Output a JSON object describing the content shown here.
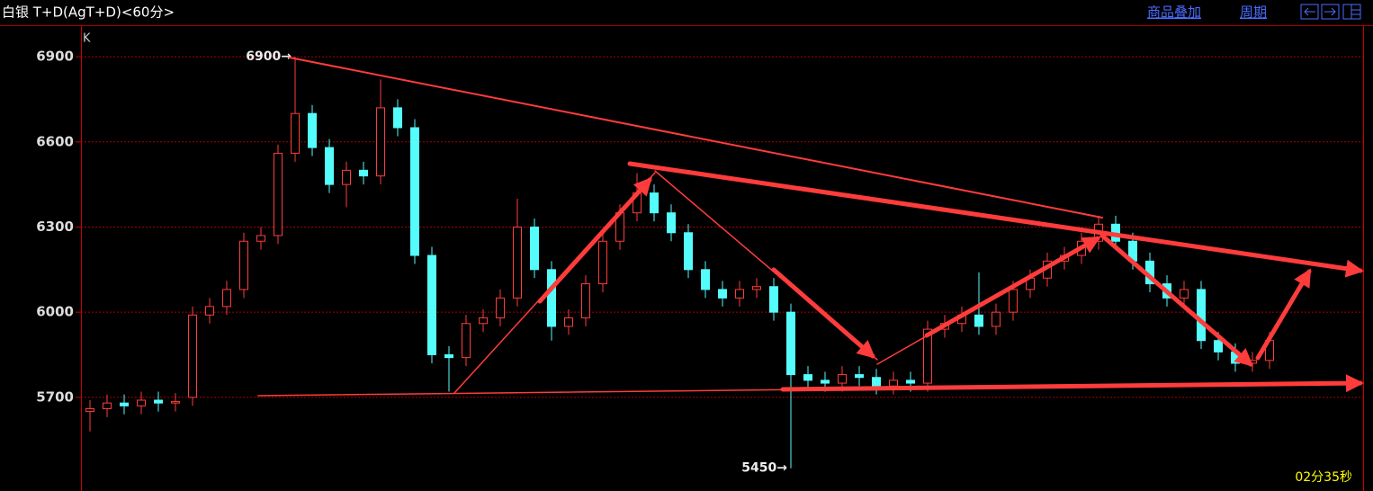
{
  "header": {
    "title": "白银 T+D(AgT+D)<60分>",
    "links": [
      "商品叠加",
      "周期"
    ]
  },
  "chart_data": {
    "type": "candlestick",
    "label": "K",
    "open": [
      5650,
      5660,
      5680,
      5670,
      5690,
      5680,
      5700,
      5990,
      6020,
      6080,
      6250,
      6270,
      6560,
      6700,
      6580,
      6450,
      6500,
      6480,
      6720,
      6650,
      6200,
      5850,
      5840,
      5960,
      5980,
      6050,
      6300,
      6150,
      5950,
      5980,
      6100,
      6250,
      6350,
      6420,
      6350,
      6280,
      6150,
      6080,
      6050,
      6080,
      6090,
      6000,
      5780,
      5760,
      5750,
      5780,
      5770,
      5740,
      5760,
      5750,
      5940,
      5960,
      5990,
      5950,
      6000,
      6080,
      6120,
      6180,
      6200,
      6250,
      6310,
      6250,
      6180,
      6100,
      6050,
      6080,
      5900,
      5860,
      5820,
      5830
    ],
    "high": [
      5690,
      5710,
      5710,
      5720,
      5720,
      5715,
      6020,
      6050,
      6110,
      6280,
      6300,
      6590,
      6900,
      6730,
      6610,
      6530,
      6530,
      6820,
      6750,
      6680,
      6230,
      5880,
      5990,
      6010,
      6080,
      6400,
      6330,
      6180,
      6010,
      6130,
      6280,
      6380,
      6490,
      6450,
      6380,
      6310,
      6180,
      6110,
      6110,
      6120,
      6120,
      6030,
      5810,
      5790,
      5810,
      5810,
      5800,
      5790,
      5790,
      5970,
      5990,
      6020,
      6140,
      6030,
      6110,
      6150,
      6210,
      6230,
      6280,
      6340,
      6340,
      6280,
      6210,
      6130,
      6110,
      6110,
      5930,
      5890,
      5860,
      5930
    ],
    "low": [
      5580,
      5630,
      5640,
      5640,
      5650,
      5650,
      5670,
      5960,
      5990,
      6050,
      6220,
      6240,
      6530,
      6550,
      6420,
      6370,
      6450,
      6450,
      6620,
      6170,
      5820,
      5720,
      5810,
      5930,
      5950,
      6020,
      6120,
      5900,
      5920,
      5950,
      6070,
      6220,
      6320,
      6320,
      6250,
      6120,
      6050,
      6020,
      6020,
      6050,
      5970,
      5450,
      5730,
      5720,
      5720,
      5740,
      5710,
      5710,
      5720,
      5720,
      5910,
      5930,
      5920,
      5920,
      5970,
      6050,
      6090,
      6150,
      6170,
      6220,
      6220,
      6150,
      6070,
      6020,
      6020,
      5870,
      5830,
      5790,
      5790,
      5800
    ],
    "close": [
      5660,
      5680,
      5670,
      5690,
      5680,
      5685,
      5990,
      6020,
      6080,
      6250,
      6270,
      6560,
      6700,
      6580,
      6450,
      6500,
      6480,
      6720,
      6650,
      6200,
      5850,
      5840,
      5960,
      5980,
      6050,
      6300,
      6150,
      5950,
      5980,
      6100,
      6250,
      6350,
      6420,
      6350,
      6280,
      6150,
      6080,
      6050,
      6080,
      6090,
      6000,
      5780,
      5760,
      5750,
      5780,
      5770,
      5740,
      5760,
      5750,
      5940,
      5960,
      5990,
      5950,
      6000,
      6080,
      6120,
      6180,
      6200,
      6250,
      6310,
      6250,
      6180,
      6100,
      6050,
      6080,
      5900,
      5860,
      5820,
      5830,
      5900
    ],
    "up_color": "#ff3c3c",
    "down_color": "#54fcfc",
    "ylim": [
      5370,
      7008
    ],
    "yticks": [
      5700,
      6000,
      6300,
      6600,
      6900
    ],
    "grid": true,
    "max_label": "6900→",
    "min_label": "5450→"
  },
  "timer": "02分35秒"
}
